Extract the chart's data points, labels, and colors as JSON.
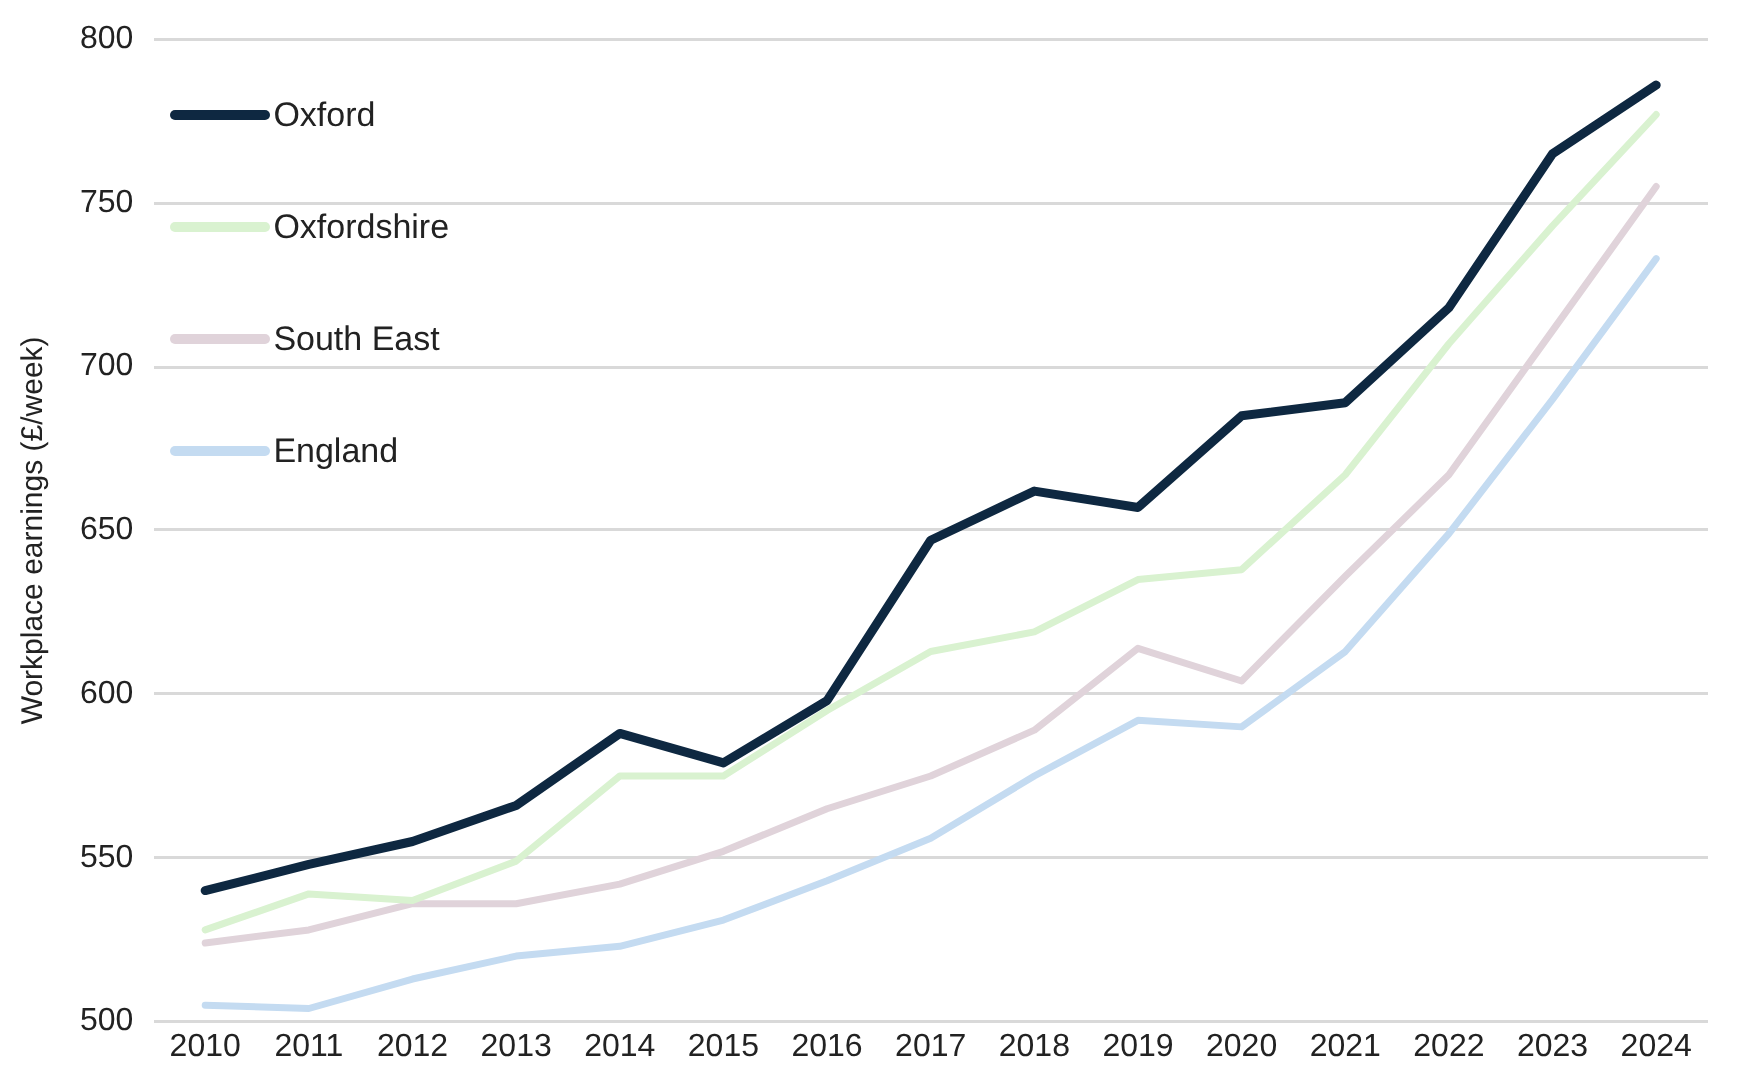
{
  "chart_data": {
    "type": "line",
    "ylabel": "Workplace earnings (£/week)",
    "categories": [
      "2010",
      "2011",
      "2012",
      "2013",
      "2014",
      "2015",
      "2016",
      "2017",
      "2018",
      "2019",
      "2020",
      "2021",
      "2022",
      "2023",
      "2024"
    ],
    "series": [
      {
        "name": "Oxford",
        "color": "#0e2841",
        "values": [
          540,
          548,
          555,
          566,
          588,
          579,
          598,
          647,
          662,
          657,
          685,
          689,
          718,
          765,
          786
        ]
      },
      {
        "name": "Oxfordshire",
        "color": "#d9f2d0",
        "values": [
          528,
          539,
          537,
          549,
          575,
          575,
          595,
          613,
          619,
          635,
          638,
          667,
          707,
          743,
          777
        ]
      },
      {
        "name": "South East",
        "color": "#e0d3da",
        "values": [
          524,
          528,
          536,
          536,
          542,
          552,
          565,
          575,
          589,
          614,
          604,
          636,
          667,
          711,
          755
        ]
      },
      {
        "name": "England",
        "color": "#c4dbf1",
        "values": [
          505,
          504,
          513,
          520,
          523,
          531,
          543,
          556,
          575,
          592,
          590,
          613,
          649,
          690,
          733
        ]
      }
    ],
    "ylim": [
      500,
      800
    ],
    "yticks": [
      500,
      550,
      600,
      650,
      700,
      750,
      800
    ],
    "grid": "y",
    "legend": "top left",
    "marker": "none",
    "line_style": "solid"
  }
}
